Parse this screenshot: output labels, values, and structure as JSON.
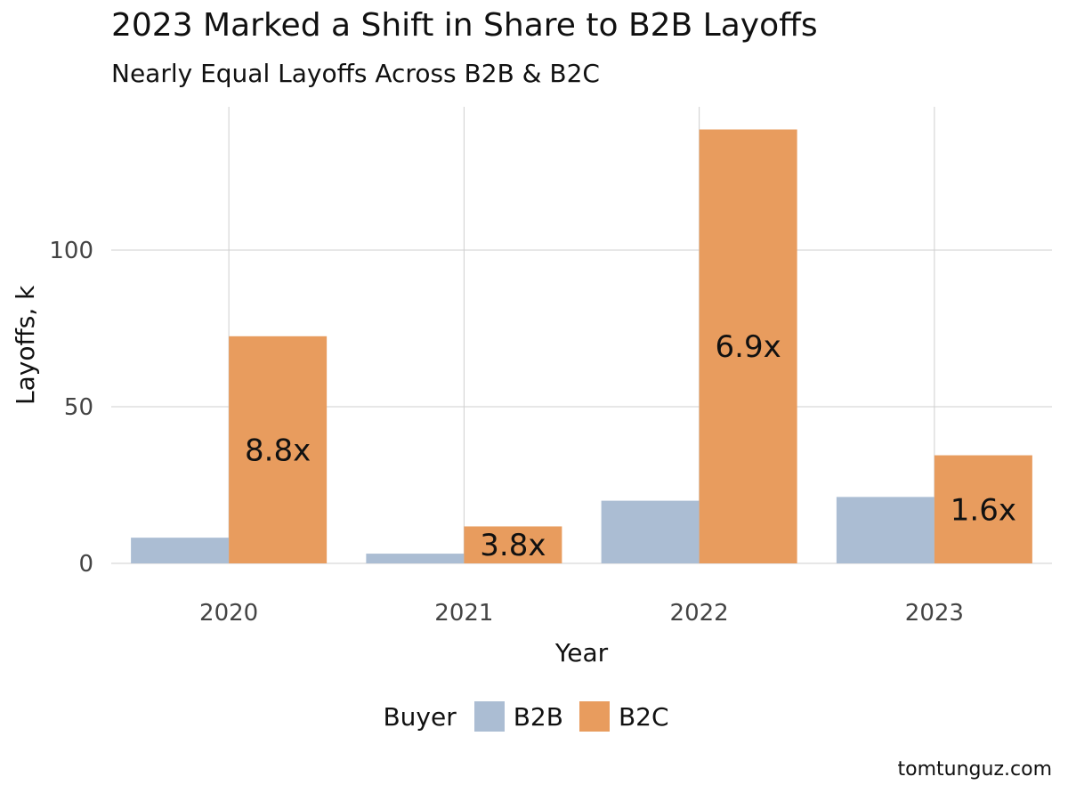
{
  "chart_data": {
    "type": "bar",
    "title": "2023 Marked a Shift in Share to B2B Layoffs",
    "subtitle": "Nearly Equal Layoffs Across B2B & B2C",
    "xlabel": "Year",
    "ylabel": "Layoffs, k",
    "categories": [
      "2020",
      "2021",
      "2022",
      "2023"
    ],
    "ylim": [
      0,
      145
    ],
    "yticks": [
      0,
      50,
      100
    ],
    "grid": true,
    "legend_title": "Buyer",
    "legend_position": "bottom",
    "series": [
      {
        "name": "B2B",
        "color": "#abbdd3",
        "values": [
          8.2,
          3.1,
          20.0,
          21.2
        ]
      },
      {
        "name": "B2C",
        "color": "#e89c5e",
        "values": [
          72.5,
          11.8,
          138.5,
          34.5
        ]
      }
    ],
    "ratio_labels": [
      "8.8x",
      "3.8x",
      "6.9x",
      "1.6x"
    ]
  },
  "source": "tomtunguz.com"
}
